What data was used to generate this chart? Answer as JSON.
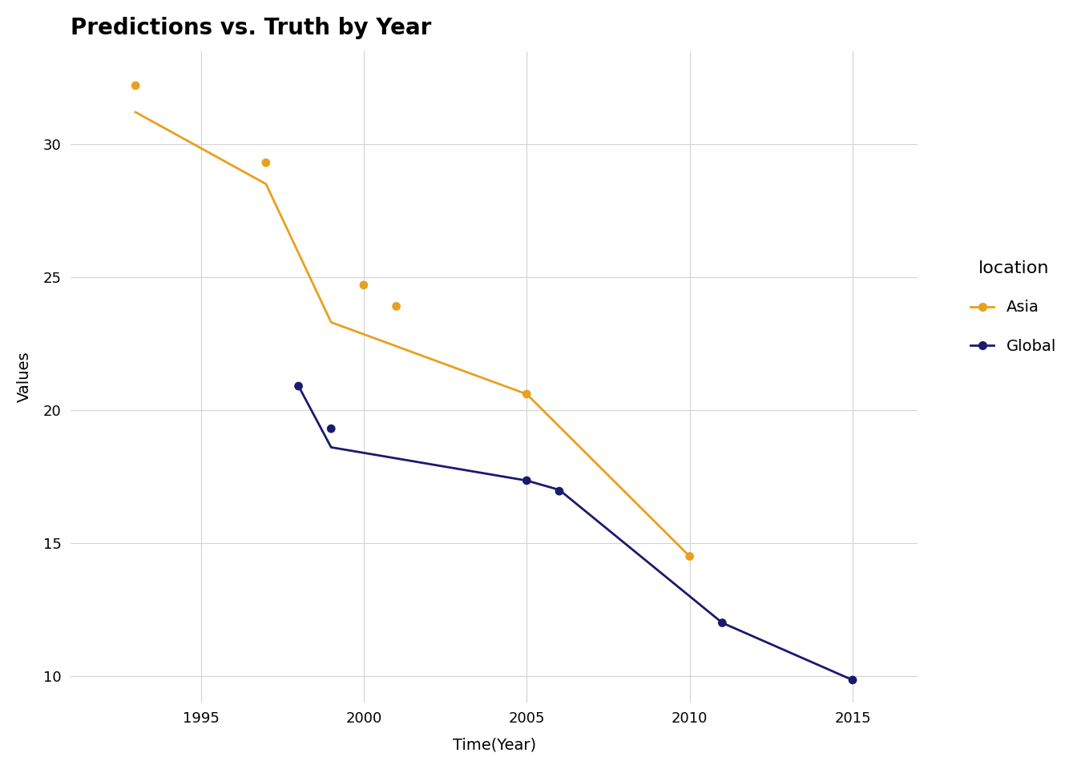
{
  "title": "Predictions vs. Truth by Year",
  "xlabel": "Time(Year)",
  "ylabel": "Values",
  "background_color": "#ffffff",
  "grid_color": "#d3d3d3",
  "asia_color": "#E8A020",
  "global_color": "#1a1a6e",
  "asia_line_x": [
    1993,
    1997,
    1999,
    2005,
    2010
  ],
  "asia_line_y": [
    31.2,
    28.5,
    23.3,
    20.6,
    14.5
  ],
  "asia_dot_x": [
    1993,
    1997,
    2000,
    2001,
    2005,
    2010
  ],
  "asia_dot_y": [
    32.2,
    29.3,
    24.7,
    23.9,
    20.6,
    14.5
  ],
  "global_line_x": [
    1998,
    1999,
    2005,
    2006,
    2011,
    2015
  ],
  "global_line_y": [
    20.9,
    18.6,
    17.35,
    17.0,
    12.0,
    9.85
  ],
  "global_dot_x": [
    1998,
    1999,
    2005,
    2006,
    2011,
    2015
  ],
  "global_dot_y": [
    20.9,
    19.3,
    17.35,
    16.95,
    12.0,
    9.85
  ],
  "xlim": [
    1991,
    2017
  ],
  "ylim": [
    9.0,
    33.5
  ],
  "xticks": [
    1995,
    2000,
    2005,
    2010,
    2015
  ],
  "yticks": [
    10,
    15,
    20,
    25,
    30
  ],
  "legend_title": "location",
  "legend_entries": [
    "Asia",
    "Global"
  ],
  "title_fontsize": 20,
  "label_fontsize": 14,
  "tick_fontsize": 13,
  "legend_fontsize": 14,
  "dot_size": 60,
  "line_width": 2.0
}
